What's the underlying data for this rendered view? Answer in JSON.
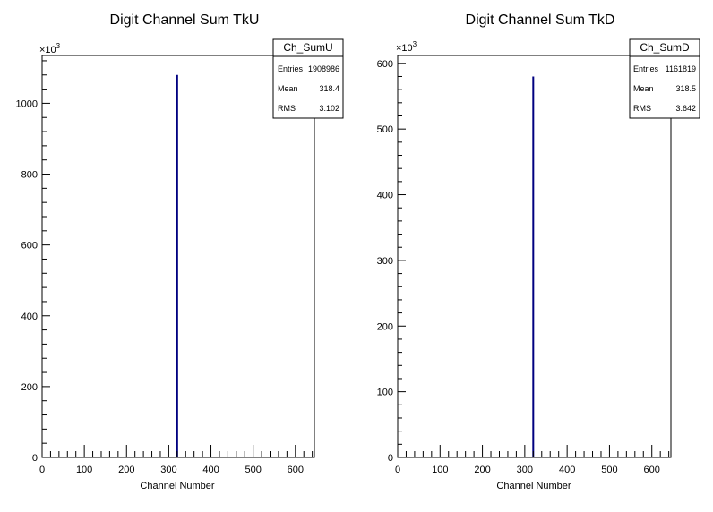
{
  "chart_data": [
    {
      "type": "bar",
      "title": "Digit Channel Sum TkU",
      "xlabel": "Channel Number",
      "ylabel": "",
      "exponent_label": "×10",
      "exponent": "3",
      "xlim": [
        0,
        645
      ],
      "ylim": [
        0,
        1135
      ],
      "x_ticks": [
        0,
        100,
        200,
        300,
        400,
        500,
        600
      ],
      "y_ticks": [
        0,
        200,
        400,
        600,
        800,
        1000
      ],
      "bars": [
        {
          "x": 320,
          "value": 1080
        }
      ],
      "bar_color": "#000080",
      "stats": {
        "name": "Ch_SumU",
        "rows": [
          {
            "label": "Entries",
            "value": "1908986"
          },
          {
            "label": "Mean",
            "value": "318.4"
          },
          {
            "label": "RMS",
            "value": "3.102"
          }
        ]
      }
    },
    {
      "type": "bar",
      "title": "Digit Channel Sum TkD",
      "xlabel": "Channel Number",
      "ylabel": "",
      "exponent_label": "×10",
      "exponent": "3",
      "xlim": [
        0,
        645
      ],
      "ylim": [
        0,
        612
      ],
      "x_ticks": [
        0,
        100,
        200,
        300,
        400,
        500,
        600
      ],
      "y_ticks": [
        0,
        100,
        200,
        300,
        400,
        500,
        600
      ],
      "bars": [
        {
          "x": 320,
          "value": 580
        }
      ],
      "bar_color": "#000080",
      "stats": {
        "name": "Ch_SumD",
        "rows": [
          {
            "label": "Entries",
            "value": "1161819"
          },
          {
            "label": "Mean",
            "value": "318.5"
          },
          {
            "label": "RMS",
            "value": "3.642"
          }
        ]
      }
    }
  ]
}
